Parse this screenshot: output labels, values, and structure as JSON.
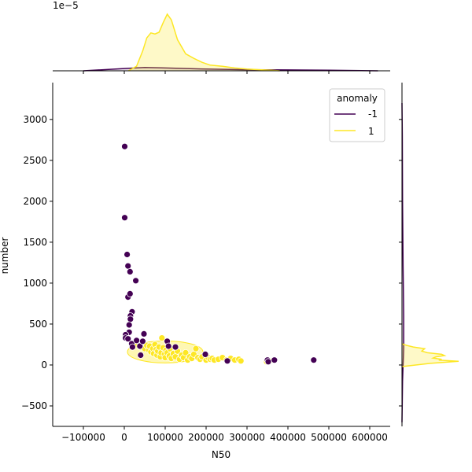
{
  "chart_data": {
    "type": "scatter",
    "subtype": "jointplot",
    "xlabel": "N50",
    "ylabel": "number",
    "xlim": [
      -175000,
      650000
    ],
    "ylim": [
      -750,
      3450
    ],
    "xticks": [
      -100000,
      0,
      100000,
      200000,
      300000,
      400000,
      500000,
      600000
    ],
    "xtick_labels": [
      "−100000",
      "0",
      "100000",
      "200000",
      "300000",
      "400000",
      "500000",
      "600000"
    ],
    "yticks": [
      -500,
      0,
      500,
      1000,
      1500,
      2000,
      2500,
      3000
    ],
    "ytick_labels": [
      "−500",
      "0",
      "500",
      "1000",
      "1500",
      "2000",
      "2500",
      "3000"
    ],
    "top_marginal_offset_label": "1e−5",
    "legend": {
      "title": "anomaly",
      "placement": "top-right",
      "entries": [
        {
          "label": "-1",
          "color": "#440154"
        },
        {
          "label": "1",
          "color": "#fde725"
        }
      ]
    },
    "grid": false,
    "series": [
      {
        "name": "-1",
        "color": "#440154",
        "points": [
          [
            1000,
            2670
          ],
          [
            1000,
            1800
          ],
          [
            7000,
            1350
          ],
          [
            9000,
            1210
          ],
          [
            14000,
            1140
          ],
          [
            28000,
            1030
          ],
          [
            9000,
            830
          ],
          [
            14000,
            870
          ],
          [
            19000,
            650
          ],
          [
            15000,
            600
          ],
          [
            15000,
            560
          ],
          [
            12000,
            490
          ],
          [
            12000,
            400
          ],
          [
            3000,
            370
          ],
          [
            3000,
            330
          ],
          [
            9000,
            320
          ],
          [
            18000,
            260
          ],
          [
            20000,
            220
          ],
          [
            30000,
            300
          ],
          [
            38000,
            230
          ],
          [
            48000,
            380
          ],
          [
            45000,
            290
          ],
          [
            40000,
            120
          ],
          [
            105000,
            290
          ],
          [
            108000,
            230
          ],
          [
            125000,
            220
          ],
          [
            198000,
            130
          ],
          [
            252000,
            50
          ],
          [
            350000,
            60
          ],
          [
            352000,
            40
          ],
          [
            367000,
            60
          ],
          [
            463000,
            60
          ]
        ]
      },
      {
        "name": "1",
        "color": "#fde725",
        "points": [
          [
            30000,
            250
          ],
          [
            40000,
            220
          ],
          [
            45000,
            270
          ],
          [
            50000,
            200
          ],
          [
            55000,
            240
          ],
          [
            60000,
            180
          ],
          [
            62000,
            230
          ],
          [
            65000,
            160
          ],
          [
            70000,
            200
          ],
          [
            72000,
            140
          ],
          [
            75000,
            250
          ],
          [
            78000,
            190
          ],
          [
            80000,
            120
          ],
          [
            82000,
            170
          ],
          [
            85000,
            220
          ],
          [
            88000,
            100
          ],
          [
            90000,
            150
          ],
          [
            92000,
            330
          ],
          [
            95000,
            210
          ],
          [
            98000,
            130
          ],
          [
            100000,
            90
          ],
          [
            102000,
            180
          ],
          [
            105000,
            150
          ],
          [
            110000,
            110
          ],
          [
            112000,
            200
          ],
          [
            115000,
            80
          ],
          [
            120000,
            140
          ],
          [
            125000,
            100
          ],
          [
            130000,
            170
          ],
          [
            135000,
            70
          ],
          [
            140000,
            120
          ],
          [
            145000,
            90
          ],
          [
            150000,
            150
          ],
          [
            155000,
            60
          ],
          [
            160000,
            100
          ],
          [
            165000,
            80
          ],
          [
            170000,
            130
          ],
          [
            175000,
            200
          ],
          [
            180000,
            90
          ],
          [
            185000,
            70
          ],
          [
            190000,
            100
          ],
          [
            200000,
            60
          ],
          [
            205000,
            90
          ],
          [
            210000,
            70
          ],
          [
            215000,
            80
          ],
          [
            220000,
            60
          ],
          [
            230000,
            70
          ],
          [
            240000,
            90
          ],
          [
            250000,
            60
          ],
          [
            260000,
            80
          ],
          [
            270000,
            60
          ],
          [
            280000,
            70
          ],
          [
            285000,
            50
          ],
          [
            348000,
            40
          ],
          [
            355000,
            50
          ]
        ]
      }
    ],
    "marginal_x": {
      "series": [
        {
          "name": "-1",
          "x": [
            -100000,
            0,
            50000,
            100000,
            200000,
            300000,
            400000,
            500000,
            620000
          ],
          "density": [
            0.0,
            0.04,
            0.06,
            0.05,
            0.03,
            0.02,
            0.015,
            0.01,
            0.0
          ]
        },
        {
          "name": "1",
          "x": [
            10000,
            30000,
            45000,
            55000,
            65000,
            75000,
            85000,
            95000,
            105000,
            115000,
            130000,
            150000,
            170000,
            190000,
            210000,
            240000,
            270000,
            300000,
            330000,
            360000,
            380000
          ],
          "density": [
            0.0,
            0.08,
            0.35,
            0.58,
            0.67,
            0.65,
            0.68,
            0.85,
            1.0,
            0.9,
            0.55,
            0.3,
            0.22,
            0.15,
            0.1,
            0.08,
            0.05,
            0.03,
            0.02,
            0.01,
            0.0
          ]
        }
      ]
    },
    "marginal_y": {
      "series": [
        {
          "name": "-1",
          "y": [
            -700,
            -200,
            0,
            200,
            600,
            1200,
            2000,
            2800,
            3200
          ],
          "density": [
            0.0,
            0.01,
            0.02,
            0.03,
            0.03,
            0.02,
            0.01,
            0.005,
            0.0
          ]
        },
        {
          "name": "1",
          "y": [
            -20,
            20,
            45,
            60,
            70,
            85,
            100,
            115,
            130,
            150,
            170,
            200,
            220,
            240,
            260
          ],
          "density": [
            0.0,
            0.5,
            1.0,
            0.65,
            0.7,
            0.55,
            0.6,
            0.75,
            0.7,
            0.45,
            0.35,
            0.4,
            0.2,
            0.08,
            0.0
          ]
        }
      ]
    }
  }
}
